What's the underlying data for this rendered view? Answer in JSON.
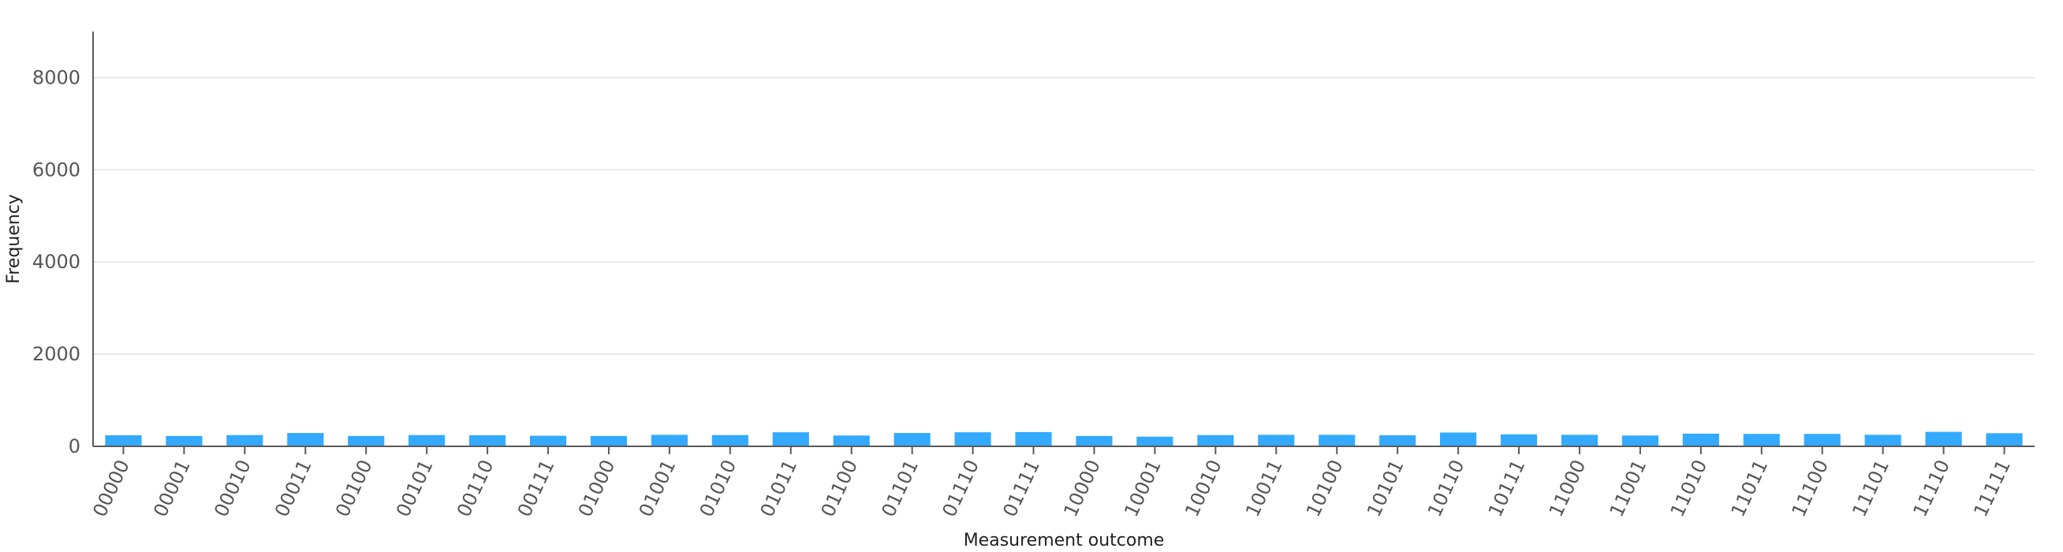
{
  "chart_data": {
    "type": "bar",
    "title": "",
    "xlabel": "Measurement outcome",
    "ylabel": "Frequency",
    "ylim": [
      0,
      9000
    ],
    "yticks": [
      0,
      2000,
      4000,
      6000,
      8000
    ],
    "grid": "horizontal",
    "bar_color": "#33aaff",
    "categories": [
      "00000",
      "00001",
      "00010",
      "00011",
      "00100",
      "00101",
      "00110",
      "00111",
      "01000",
      "01001",
      "01010",
      "01011",
      "01100",
      "01101",
      "01110",
      "01111",
      "10000",
      "10001",
      "10010",
      "10011",
      "10100",
      "10101",
      "10110",
      "10111",
      "11000",
      "11001",
      "11010",
      "11011",
      "11100",
      "11101",
      "11110",
      "11111"
    ],
    "values": [
      240,
      225,
      245,
      290,
      225,
      245,
      240,
      230,
      225,
      250,
      245,
      305,
      235,
      290,
      305,
      310,
      225,
      210,
      245,
      250,
      250,
      240,
      300,
      260,
      250,
      235,
      275,
      270,
      270,
      250,
      315,
      285
    ]
  }
}
